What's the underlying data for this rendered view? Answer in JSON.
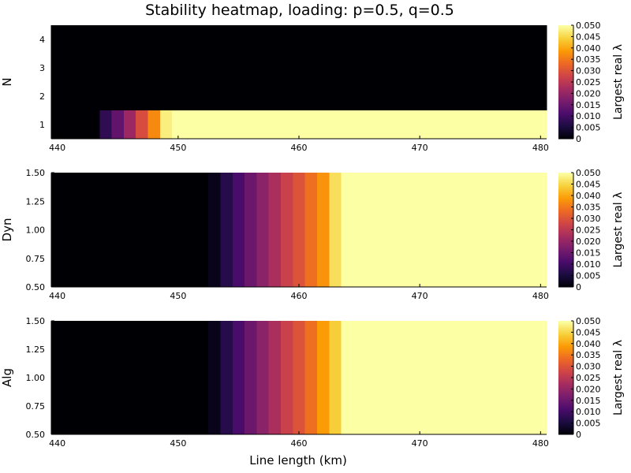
{
  "chart_data": {
    "type": "heatmap",
    "title": "Stability heatmap, loading: p=0.5, q=0.5",
    "xlabel": "Line length (km)",
    "colorbar_label": "Largest real λ",
    "colorbar_range": [
      0,
      0.05
    ],
    "colorbar_ticks": [
      "0",
      "0.005",
      "0.010",
      "0.015",
      "0.020",
      "0.025",
      "0.030",
      "0.035",
      "0.040",
      "0.045",
      "0.050"
    ],
    "colormap": [
      "#000004",
      "#1b0c41",
      "#4a0c6b",
      "#781c6d",
      "#a52c60",
      "#cf4446",
      "#ed6925",
      "#fb9b06",
      "#f7d13d",
      "#fcffa4"
    ],
    "x_ticks": [
      "440",
      "450",
      "460",
      "470",
      "480"
    ],
    "xlim": [
      439.5,
      480.5
    ],
    "panels": [
      {
        "name": "N",
        "ylabel": "N",
        "ylim": [
          0.5,
          4.5
        ],
        "y_ticks": [
          "1",
          "2",
          "3",
          "4"
        ],
        "rows": [
          {
            "y0": 0.5,
            "y1": 1.5,
            "transition": [
              {
                "from": 439.5,
                "to": 443.5,
                "v": 0
              },
              {
                "from": 443.5,
                "to": 444.5,
                "v": 0.008
              },
              {
                "from": 444.5,
                "to": 445.5,
                "v": 0.014
              },
              {
                "from": 445.5,
                "to": 446.5,
                "v": 0.021
              },
              {
                "from": 446.5,
                "to": 447.5,
                "v": 0.029
              },
              {
                "from": 447.5,
                "to": 448.5,
                "v": 0.037
              },
              {
                "from": 448.5,
                "to": 449.5,
                "v": 0.048
              },
              {
                "from": 449.5,
                "to": 480.5,
                "v": 0.05
              }
            ]
          },
          {
            "y0": 1.5,
            "y1": 4.5,
            "transition": [
              {
                "from": 439.5,
                "to": 480.5,
                "v": 0
              }
            ]
          }
        ]
      },
      {
        "name": "Dyn",
        "ylabel": "Dyn",
        "ylim": [
          0.5,
          1.5
        ],
        "y_ticks": [
          "0.50",
          "0.75",
          "1.00",
          "1.25",
          "1.50"
        ],
        "rows": [
          {
            "y0": 0.5,
            "y1": 1.5,
            "transition": [
              {
                "from": 439.5,
                "to": 452.5,
                "v": 0
              },
              {
                "from": 452.5,
                "to": 453.5,
                "v": 0.002
              },
              {
                "from": 453.5,
                "to": 454.5,
                "v": 0.007
              },
              {
                "from": 454.5,
                "to": 455.5,
                "v": 0.011
              },
              {
                "from": 455.5,
                "to": 456.5,
                "v": 0.015
              },
              {
                "from": 456.5,
                "to": 457.5,
                "v": 0.019
              },
              {
                "from": 457.5,
                "to": 458.5,
                "v": 0.023
              },
              {
                "from": 458.5,
                "to": 459.5,
                "v": 0.027
              },
              {
                "from": 459.5,
                "to": 460.5,
                "v": 0.03
              },
              {
                "from": 460.5,
                "to": 461.5,
                "v": 0.034
              },
              {
                "from": 461.5,
                "to": 462.5,
                "v": 0.038
              },
              {
                "from": 462.5,
                "to": 463.5,
                "v": 0.046
              },
              {
                "from": 463.5,
                "to": 480.5,
                "v": 0.05
              }
            ]
          }
        ]
      },
      {
        "name": "Alg",
        "ylabel": "Alg",
        "ylim": [
          0.5,
          1.5
        ],
        "y_ticks": [
          "0.50",
          "0.75",
          "1.00",
          "1.25",
          "1.50"
        ],
        "rows": [
          {
            "y0": 0.5,
            "y1": 1.5,
            "transition": [
              {
                "from": 439.5,
                "to": 452.5,
                "v": 0
              },
              {
                "from": 452.5,
                "to": 453.5,
                "v": 0.002
              },
              {
                "from": 453.5,
                "to": 454.5,
                "v": 0.007
              },
              {
                "from": 454.5,
                "to": 455.5,
                "v": 0.011
              },
              {
                "from": 455.5,
                "to": 456.5,
                "v": 0.015
              },
              {
                "from": 456.5,
                "to": 457.5,
                "v": 0.019
              },
              {
                "from": 457.5,
                "to": 458.5,
                "v": 0.023
              },
              {
                "from": 458.5,
                "to": 459.5,
                "v": 0.027
              },
              {
                "from": 459.5,
                "to": 460.5,
                "v": 0.03
              },
              {
                "from": 460.5,
                "to": 461.5,
                "v": 0.034
              },
              {
                "from": 461.5,
                "to": 462.5,
                "v": 0.039
              },
              {
                "from": 462.5,
                "to": 463.5,
                "v": 0.044
              },
              {
                "from": 463.5,
                "to": 480.5,
                "v": 0.05
              }
            ]
          }
        ]
      }
    ]
  }
}
